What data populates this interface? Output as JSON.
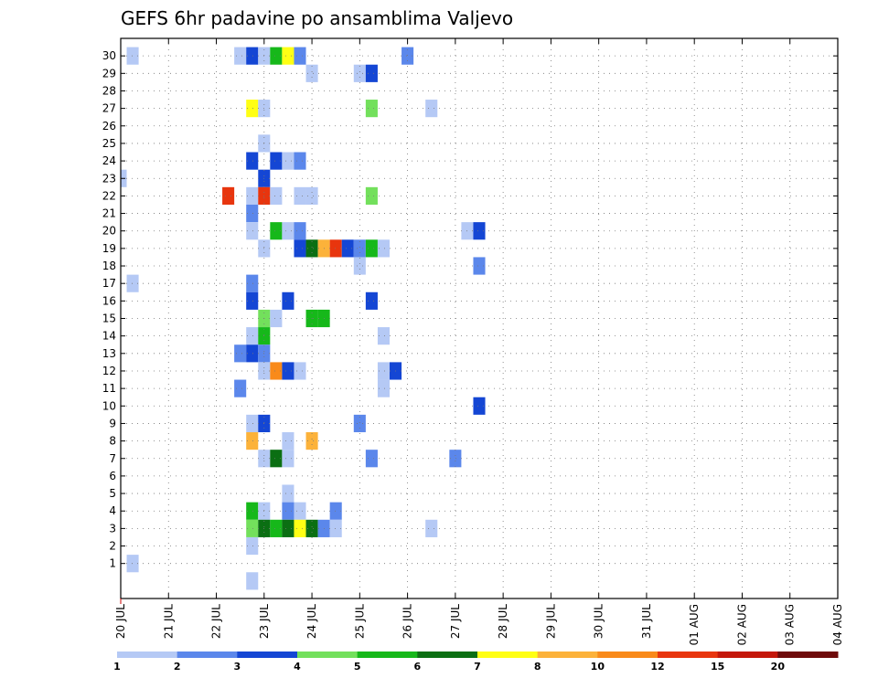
{
  "chart_data": {
    "type": "heatmap",
    "title": "GEFS 6hr padavine po ansamblima Valjevo",
    "xlabel": "",
    "ylabel": "",
    "x_tick_labels": [
      "20 JUL",
      "21 JUL",
      "22 JUL",
      "23 JUL",
      "24 JUL",
      "25 JUL",
      "26 JUL",
      "27 JUL",
      "28 JUL",
      "29 JUL",
      "30 JUL",
      "31 JUL",
      "01 AUG",
      "02 AUG",
      "03 AUG",
      "04 AUG"
    ],
    "x_step_hours": 6,
    "y_tick_labels": [
      "1",
      "2",
      "3",
      "4",
      "5",
      "6",
      "7",
      "8",
      "9",
      "10",
      "11",
      "12",
      "13",
      "14",
      "15",
      "16",
      "17",
      "18",
      "19",
      "20",
      "21",
      "22",
      "23",
      "24",
      "25",
      "26",
      "27",
      "28",
      "29",
      "30"
    ],
    "ylim": [
      0,
      30
    ],
    "grid": true,
    "colorbar": {
      "labels": [
        "1",
        "2",
        "3",
        "4",
        "5",
        "6",
        "7",
        "8",
        "10",
        "12",
        "15",
        "20"
      ],
      "colors": [
        "#b5c9f5",
        "#5b87eb",
        "#1446d4",
        "#73e05c",
        "#16b81a",
        "#0b6f13",
        "#ffff14",
        "#fcb23a",
        "#f98a1a",
        "#e8350e",
        "#c4170a",
        "#6e0a0a"
      ]
    },
    "cells": [
      {
        "member": 30,
        "step": 1,
        "class": 0
      },
      {
        "member": 30,
        "step": 10,
        "class": 0
      },
      {
        "member": 30,
        "step": 11,
        "class": 2
      },
      {
        "member": 30,
        "step": 12,
        "class": 0
      },
      {
        "member": 30,
        "step": 13,
        "class": 4
      },
      {
        "member": 30,
        "step": 14,
        "class": 6
      },
      {
        "member": 30,
        "step": 15,
        "class": 1
      },
      {
        "member": 30,
        "step": 24,
        "class": 1
      },
      {
        "member": 29,
        "step": 16,
        "class": 0
      },
      {
        "member": 29,
        "step": 20,
        "class": 0
      },
      {
        "member": 29,
        "step": 21,
        "class": 2
      },
      {
        "member": 27,
        "step": 11,
        "class": 6
      },
      {
        "member": 27,
        "step": 12,
        "class": 0
      },
      {
        "member": 27,
        "step": 21,
        "class": 3
      },
      {
        "member": 27,
        "step": 26,
        "class": 0
      },
      {
        "member": 25,
        "step": 12,
        "class": 0
      },
      {
        "member": 24,
        "step": 11,
        "class": 2
      },
      {
        "member": 24,
        "step": 13,
        "class": 2
      },
      {
        "member": 24,
        "step": 14,
        "class": 0
      },
      {
        "member": 24,
        "step": 15,
        "class": 1
      },
      {
        "member": 23,
        "step": 0,
        "class": 0
      },
      {
        "member": 23,
        "step": 12,
        "class": 2
      },
      {
        "member": 22,
        "step": 9,
        "class": 9
      },
      {
        "member": 22,
        "step": 11,
        "class": 0
      },
      {
        "member": 22,
        "step": 12,
        "class": 9
      },
      {
        "member": 22,
        "step": 13,
        "class": 0
      },
      {
        "member": 22,
        "step": 15,
        "class": 0
      },
      {
        "member": 22,
        "step": 16,
        "class": 0
      },
      {
        "member": 22,
        "step": 21,
        "class": 3
      },
      {
        "member": 21,
        "step": 11,
        "class": 1
      },
      {
        "member": 20,
        "step": 11,
        "class": 0
      },
      {
        "member": 20,
        "step": 13,
        "class": 4
      },
      {
        "member": 20,
        "step": 14,
        "class": 0
      },
      {
        "member": 20,
        "step": 15,
        "class": 1
      },
      {
        "member": 20,
        "step": 29,
        "class": 0
      },
      {
        "member": 20,
        "step": 30,
        "class": 2
      },
      {
        "member": 19,
        "step": 12,
        "class": 0
      },
      {
        "member": 19,
        "step": 15,
        "class": 2
      },
      {
        "member": 19,
        "step": 16,
        "class": 5
      },
      {
        "member": 19,
        "step": 17,
        "class": 7
      },
      {
        "member": 19,
        "step": 18,
        "class": 9
      },
      {
        "member": 19,
        "step": 19,
        "class": 2
      },
      {
        "member": 19,
        "step": 20,
        "class": 1
      },
      {
        "member": 19,
        "step": 21,
        "class": 4
      },
      {
        "member": 19,
        "step": 22,
        "class": 0
      },
      {
        "member": 18,
        "step": 20,
        "class": 0
      },
      {
        "member": 18,
        "step": 30,
        "class": 1
      },
      {
        "member": 17,
        "step": 1,
        "class": 0
      },
      {
        "member": 17,
        "step": 11,
        "class": 1
      },
      {
        "member": 16,
        "step": 11,
        "class": 2
      },
      {
        "member": 16,
        "step": 14,
        "class": 2
      },
      {
        "member": 16,
        "step": 21,
        "class": 2
      },
      {
        "member": 15,
        "step": 12,
        "class": 3
      },
      {
        "member": 15,
        "step": 13,
        "class": 0
      },
      {
        "member": 15,
        "step": 16,
        "class": 4
      },
      {
        "member": 15,
        "step": 17,
        "class": 4
      },
      {
        "member": 14,
        "step": 11,
        "class": 0
      },
      {
        "member": 14,
        "step": 12,
        "class": 4
      },
      {
        "member": 14,
        "step": 22,
        "class": 0
      },
      {
        "member": 13,
        "step": 10,
        "class": 1
      },
      {
        "member": 13,
        "step": 11,
        "class": 2
      },
      {
        "member": 13,
        "step": 12,
        "class": 1
      },
      {
        "member": 12,
        "step": 12,
        "class": 0
      },
      {
        "member": 12,
        "step": 13,
        "class": 8
      },
      {
        "member": 12,
        "step": 14,
        "class": 2
      },
      {
        "member": 12,
        "step": 15,
        "class": 0
      },
      {
        "member": 12,
        "step": 22,
        "class": 0
      },
      {
        "member": 12,
        "step": 23,
        "class": 2
      },
      {
        "member": 11,
        "step": 10,
        "class": 1
      },
      {
        "member": 11,
        "step": 22,
        "class": 0
      },
      {
        "member": 10,
        "step": 30,
        "class": 2
      },
      {
        "member": 9,
        "step": 11,
        "class": 0
      },
      {
        "member": 9,
        "step": 12,
        "class": 2
      },
      {
        "member": 9,
        "step": 20,
        "class": 1
      },
      {
        "member": 8,
        "step": 11,
        "class": 7
      },
      {
        "member": 8,
        "step": 14,
        "class": 0
      },
      {
        "member": 8,
        "step": 16,
        "class": 7
      },
      {
        "member": 7,
        "step": 12,
        "class": 0
      },
      {
        "member": 7,
        "step": 13,
        "class": 5
      },
      {
        "member": 7,
        "step": 14,
        "class": 0
      },
      {
        "member": 7,
        "step": 21,
        "class": 1
      },
      {
        "member": 7,
        "step": 28,
        "class": 1
      },
      {
        "member": 5,
        "step": 14,
        "class": 0
      },
      {
        "member": 4,
        "step": 11,
        "class": 4
      },
      {
        "member": 4,
        "step": 12,
        "class": 0
      },
      {
        "member": 4,
        "step": 14,
        "class": 1
      },
      {
        "member": 4,
        "step": 15,
        "class": 0
      },
      {
        "member": 4,
        "step": 18,
        "class": 1
      },
      {
        "member": 3,
        "step": 11,
        "class": 3
      },
      {
        "member": 3,
        "step": 12,
        "class": 5
      },
      {
        "member": 3,
        "step": 13,
        "class": 4
      },
      {
        "member": 3,
        "step": 14,
        "class": 5
      },
      {
        "member": 3,
        "step": 15,
        "class": 6
      },
      {
        "member": 3,
        "step": 16,
        "class": 5
      },
      {
        "member": 3,
        "step": 17,
        "class": 1
      },
      {
        "member": 3,
        "step": 18,
        "class": 0
      },
      {
        "member": 3,
        "step": 26,
        "class": 0
      },
      {
        "member": 2,
        "step": 11,
        "class": 0
      },
      {
        "member": 1,
        "step": 1,
        "class": 0
      },
      {
        "member": 0,
        "step": 11,
        "class": 0
      }
    ]
  }
}
